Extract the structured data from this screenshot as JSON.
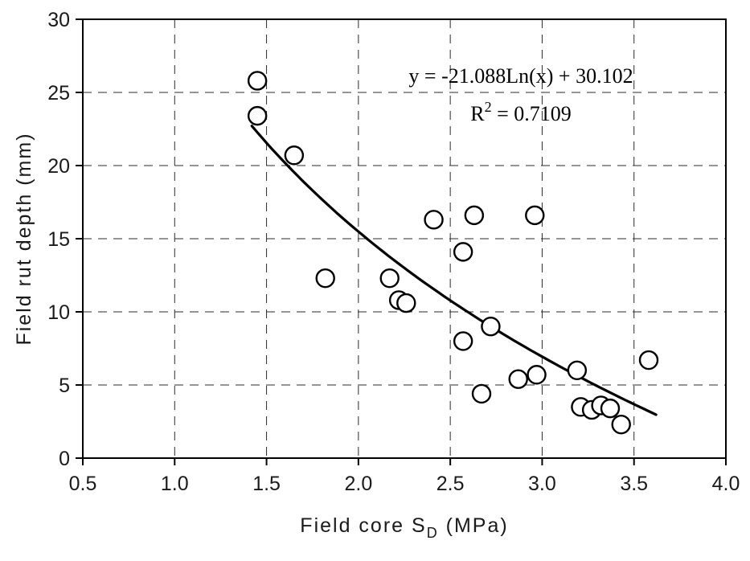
{
  "chart_data": {
    "type": "scatter",
    "title": "",
    "xlabel": "Field core S_D (MPa)",
    "xlabel_parts": {
      "pre": "Field core S",
      "sub": "D",
      "post": " (MPa)"
    },
    "ylabel": "Field rut depth (mm)",
    "xlim": [
      0.5,
      4.0
    ],
    "ylim": [
      0,
      30
    ],
    "x_ticks": [
      {
        "value": 0.5,
        "label": "0.5"
      },
      {
        "value": 1.0,
        "label": "1.0"
      },
      {
        "value": 1.5,
        "label": "1.5"
      },
      {
        "value": 2.0,
        "label": "2.0"
      },
      {
        "value": 2.5,
        "label": "2.5"
      },
      {
        "value": 3.0,
        "label": "3.0"
      },
      {
        "value": 3.5,
        "label": "3.5"
      },
      {
        "value": 4.0,
        "label": "4.0"
      }
    ],
    "y_ticks": [
      {
        "value": 0,
        "label": "0"
      },
      {
        "value": 5,
        "label": "5"
      },
      {
        "value": 10,
        "label": "10"
      },
      {
        "value": 15,
        "label": "15"
      },
      {
        "value": 20,
        "label": "20"
      },
      {
        "value": 25,
        "label": "25"
      },
      {
        "value": 30,
        "label": "30"
      }
    ],
    "grid": "dashed-both",
    "marker": {
      "shape": "open-circle",
      "color": "#000000"
    },
    "points": [
      [
        1.45,
        25.8
      ],
      [
        1.45,
        23.4
      ],
      [
        1.65,
        20.7
      ],
      [
        1.82,
        12.3
      ],
      [
        2.17,
        12.3
      ],
      [
        2.22,
        10.8
      ],
      [
        2.26,
        10.6
      ],
      [
        2.41,
        16.3
      ],
      [
        2.57,
        14.1
      ],
      [
        2.63,
        16.6
      ],
      [
        2.57,
        8.0
      ],
      [
        2.72,
        9.0
      ],
      [
        2.67,
        4.4
      ],
      [
        2.87,
        5.4
      ],
      [
        2.97,
        5.7
      ],
      [
        2.96,
        16.6
      ],
      [
        3.19,
        6.0
      ],
      [
        3.21,
        3.5
      ],
      [
        3.27,
        3.3
      ],
      [
        3.32,
        3.6
      ],
      [
        3.37,
        3.4
      ],
      [
        3.43,
        2.3
      ],
      [
        3.58,
        6.7
      ]
    ],
    "trendline": {
      "type": "logarithmic",
      "slope": -21.088,
      "intercept": 30.102,
      "x_start": 1.42,
      "x_end": 3.62,
      "color": "#000000"
    },
    "annotation": {
      "equation": "y = -21.088Ln(x) + 30.102",
      "r2_base": "R",
      "r2_sup": "2",
      "r2_rest": " = 0.7109"
    },
    "legend": "none"
  }
}
